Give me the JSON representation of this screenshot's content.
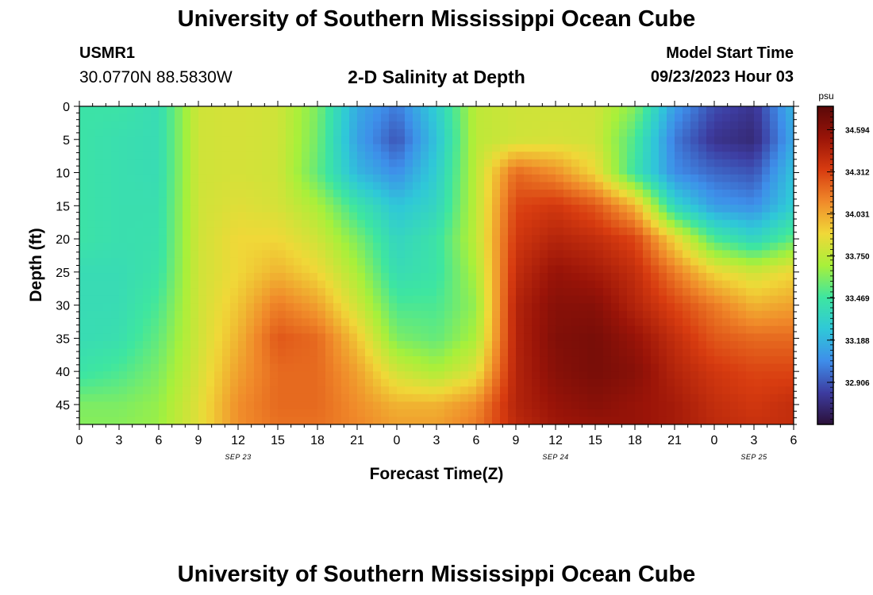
{
  "header": {
    "title": "University of Southern Mississippi Ocean Cube",
    "station": "USMR1",
    "coords": "30.0770N  88.5830W",
    "subtitle": "2-D Salinity at Depth",
    "model_start_label": "Model Start Time",
    "model_start_value": "09/23/2023 Hour 03",
    "footer_title": "University of Southern Mississippi Ocean Cube"
  },
  "chart_data": {
    "type": "heatmap",
    "title": "2-D Salinity at Depth",
    "xlabel": "Forecast Time(Z)",
    "ylabel": "Depth (ft)",
    "x_ticks": [
      "0",
      "3",
      "6",
      "9",
      "12",
      "15",
      "18",
      "21",
      "0",
      "3",
      "6",
      "9",
      "12",
      "15",
      "18",
      "21",
      "0",
      "3",
      "6"
    ],
    "x_range_hours": [
      0,
      54
    ],
    "date_labels": [
      {
        "text": "SEP 23",
        "hour": 12
      },
      {
        "text": "SEP 24",
        "hour": 36
      },
      {
        "text": "SEP 25",
        "hour": 51
      }
    ],
    "y_ticks": [
      0,
      5,
      10,
      15,
      20,
      25,
      30,
      35,
      40,
      45
    ],
    "y_range": [
      0,
      48
    ],
    "y_inverted": true,
    "colorbar": {
      "unit": "psu",
      "min": 32.625,
      "max": 34.75,
      "ticks": [
        "34.594",
        "34.312",
        "34.031",
        "33.750",
        "33.469",
        "33.188",
        "32.906"
      ],
      "colors": [
        "#2b1038",
        "#3d3ca0",
        "#3e8eea",
        "#2fc8d8",
        "#3ee6a0",
        "#a8f03a",
        "#f0d838",
        "#f08a2a",
        "#d83c10",
        "#9a1408",
        "#5a0808"
      ]
    },
    "x_hours": [
      0,
      3,
      6,
      9,
      12,
      15,
      18,
      21,
      24,
      27,
      30,
      33,
      36,
      39,
      42,
      45,
      48,
      51,
      54
    ],
    "depths": [
      0,
      5,
      10,
      15,
      20,
      25,
      30,
      35,
      40,
      45,
      48
    ],
    "values": [
      [
        33.45,
        33.45,
        33.4,
        33.8,
        33.82,
        33.8,
        33.6,
        33.15,
        33.0,
        33.3,
        33.75,
        33.8,
        33.8,
        33.8,
        33.62,
        33.1,
        32.88,
        32.8,
        33.2
      ],
      [
        33.45,
        33.42,
        33.4,
        33.8,
        33.82,
        33.8,
        33.58,
        33.12,
        32.9,
        33.25,
        33.75,
        33.8,
        33.82,
        33.8,
        33.5,
        33.0,
        32.8,
        32.75,
        33.15
      ],
      [
        33.45,
        33.42,
        33.4,
        33.8,
        33.82,
        33.8,
        33.55,
        33.2,
        33.05,
        33.3,
        33.75,
        34.2,
        34.1,
        33.9,
        33.45,
        33.05,
        32.95,
        32.9,
        33.25
      ],
      [
        33.45,
        33.42,
        33.42,
        33.8,
        33.85,
        33.82,
        33.7,
        33.45,
        33.25,
        33.35,
        33.75,
        34.3,
        34.35,
        34.25,
        34.0,
        33.35,
        33.1,
        33.05,
        33.3
      ],
      [
        33.45,
        33.42,
        33.43,
        33.8,
        33.9,
        33.9,
        33.8,
        33.6,
        33.35,
        33.45,
        33.75,
        34.35,
        34.45,
        34.4,
        34.3,
        33.9,
        33.5,
        33.35,
        33.55
      ],
      [
        33.4,
        33.4,
        33.45,
        33.8,
        33.9,
        34.0,
        33.9,
        33.7,
        33.4,
        33.45,
        33.7,
        34.4,
        34.55,
        34.5,
        34.4,
        34.15,
        33.9,
        33.8,
        33.9
      ],
      [
        33.4,
        33.4,
        33.5,
        33.8,
        33.95,
        34.15,
        34.05,
        33.8,
        33.5,
        33.5,
        33.65,
        34.45,
        34.6,
        34.6,
        34.45,
        34.3,
        34.15,
        34.0,
        34.05
      ],
      [
        33.4,
        33.42,
        33.55,
        33.8,
        34.0,
        34.25,
        34.2,
        33.95,
        33.6,
        33.55,
        33.7,
        34.45,
        34.62,
        34.65,
        34.55,
        34.4,
        34.25,
        34.2,
        34.2
      ],
      [
        33.45,
        33.5,
        33.6,
        33.82,
        34.05,
        34.2,
        34.2,
        34.05,
        33.8,
        33.7,
        33.85,
        34.45,
        34.6,
        34.65,
        34.6,
        34.45,
        34.35,
        34.3,
        34.3
      ],
      [
        33.6,
        33.6,
        33.65,
        33.85,
        34.1,
        34.2,
        34.2,
        34.1,
        34.0,
        34.0,
        34.1,
        34.45,
        34.55,
        34.6,
        34.55,
        34.5,
        34.4,
        34.35,
        34.4
      ],
      [
        33.62,
        33.62,
        33.66,
        33.85,
        34.1,
        34.18,
        34.18,
        34.12,
        34.05,
        34.05,
        34.15,
        34.42,
        34.52,
        34.55,
        34.55,
        34.5,
        34.42,
        34.38,
        34.4
      ]
    ]
  }
}
